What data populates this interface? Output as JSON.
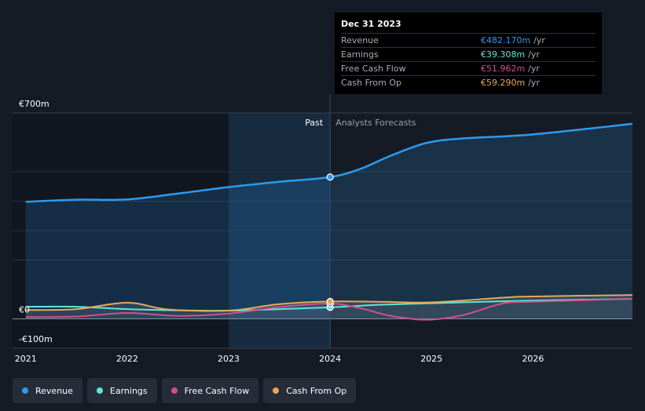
{
  "tooltip": {
    "date": "Dec 31 2023",
    "unit": "/yr",
    "rows": [
      {
        "label": "Revenue",
        "value": "€482.170m",
        "color": "#2d9bf0"
      },
      {
        "label": "Earnings",
        "value": "€39.308m",
        "color": "#5ee8d6"
      },
      {
        "label": "Free Cash Flow",
        "value": "€51.962m",
        "color": "#d14f8f"
      },
      {
        "label": "Cash From Op",
        "value": "€59.290m",
        "color": "#e8a85a"
      }
    ]
  },
  "legend": [
    {
      "label": "Revenue",
      "color": "#2d9bf0"
    },
    {
      "label": "Earnings",
      "color": "#5ee8d6"
    },
    {
      "label": "Free Cash Flow",
      "color": "#d14f8f"
    },
    {
      "label": "Cash From Op",
      "color": "#e8a85a"
    }
  ],
  "regions": {
    "past_label": "Past",
    "forecast_label": "Analysts Forecasts"
  },
  "chart_data": {
    "type": "line",
    "xlim": [
      2020.87,
      2026.98
    ],
    "ylim": [
      -100,
      700
    ],
    "y_tick_labels": [
      {
        "value": 700,
        "label": "€700m"
      },
      {
        "value": 0,
        "label": "€0"
      },
      {
        "value": -100,
        "label": "-€100m"
      }
    ],
    "x_ticks": [
      2021,
      2022,
      2023,
      2024,
      2025,
      2026
    ],
    "x_tick_labels": [
      "2021",
      "2022",
      "2023",
      "2024",
      "2025",
      "2026"
    ],
    "gridlines_y": [
      500,
      400,
      300,
      200
    ],
    "past_region": [
      2023,
      2024
    ],
    "highlight_x": 2024,
    "series": [
      {
        "name": "Revenue",
        "color": "#2d9bf0",
        "points": [
          [
            2021,
            398
          ],
          [
            2021.5,
            405
          ],
          [
            2022,
            406
          ],
          [
            2022.5,
            426
          ],
          [
            2023,
            448
          ],
          [
            2023.5,
            466
          ],
          [
            2024,
            482
          ],
          [
            2024.3,
            510
          ],
          [
            2024.6,
            555
          ],
          [
            2024.95,
            598
          ],
          [
            2025.3,
            613
          ],
          [
            2026,
            627
          ],
          [
            2026.98,
            663
          ]
        ]
      },
      {
        "name": "Earnings",
        "color": "#5ee8d6",
        "points": [
          [
            2021,
            41
          ],
          [
            2021.5,
            41
          ],
          [
            2022,
            33
          ],
          [
            2022.5,
            29
          ],
          [
            2023,
            28
          ],
          [
            2023.5,
            33
          ],
          [
            2024,
            39
          ],
          [
            2024.5,
            48
          ],
          [
            2025,
            53
          ],
          [
            2025.5,
            58
          ],
          [
            2026,
            62
          ],
          [
            2026.98,
            68
          ]
        ]
      },
      {
        "name": "Free Cash Flow",
        "color": "#d14f8f",
        "points": [
          [
            2021,
            6
          ],
          [
            2021.5,
            8
          ],
          [
            2022,
            20
          ],
          [
            2022.5,
            10
          ],
          [
            2023,
            18
          ],
          [
            2023.5,
            40
          ],
          [
            2024,
            52
          ],
          [
            2024.3,
            36
          ],
          [
            2024.6,
            10
          ],
          [
            2024.95,
            -3
          ],
          [
            2025.3,
            12
          ],
          [
            2025.7,
            52
          ],
          [
            2026,
            58
          ],
          [
            2026.98,
            68
          ]
        ]
      },
      {
        "name": "Cash From Op",
        "color": "#e8a85a",
        "points": [
          [
            2021,
            30
          ],
          [
            2021.5,
            33
          ],
          [
            2022,
            55
          ],
          [
            2022.4,
            32
          ],
          [
            2023,
            28
          ],
          [
            2023.5,
            50
          ],
          [
            2024,
            59
          ],
          [
            2024.5,
            58
          ],
          [
            2025,
            56
          ],
          [
            2025.7,
            72
          ],
          [
            2026,
            76
          ],
          [
            2026.98,
            81
          ]
        ]
      }
    ]
  }
}
